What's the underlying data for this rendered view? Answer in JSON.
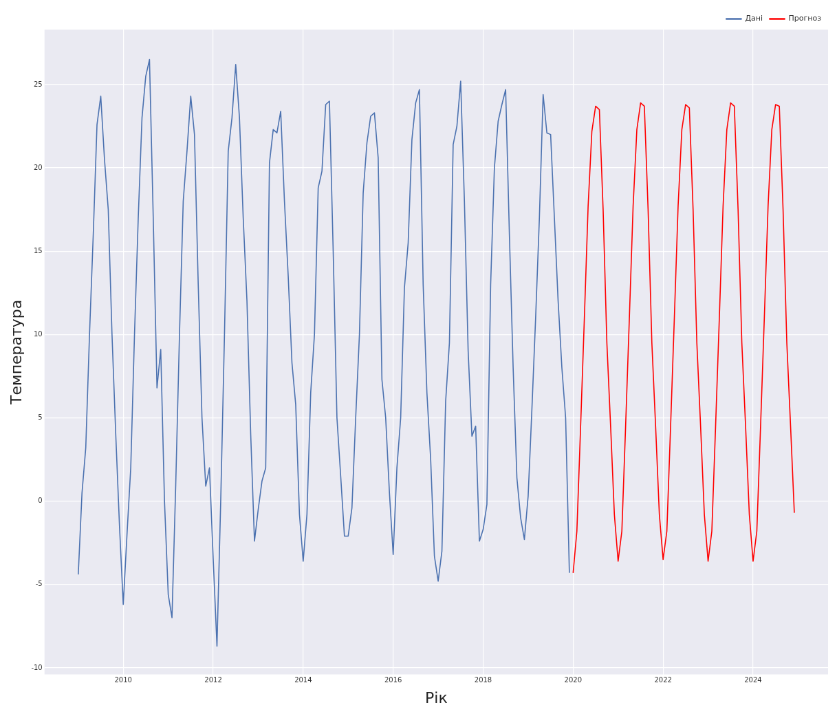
{
  "chart_data": {
    "type": "line",
    "xlabel": "Рік",
    "ylabel": "Температура",
    "xlim": [
      "2008-04",
      "2025-09"
    ],
    "ylim": [
      -10.4,
      28.3
    ],
    "xticks": [
      "2010",
      "2012",
      "2014",
      "2016",
      "2018",
      "2020",
      "2022",
      "2024"
    ],
    "yticks": [
      -10,
      -5,
      0,
      5,
      10,
      15,
      20,
      25
    ],
    "grid": true,
    "legend": "top right",
    "marker": "none",
    "line_style": "solid",
    "series": [
      {
        "name": "Дані",
        "color": "#4c72b0",
        "x": [
          "2009-01",
          "2009-02",
          "2009-03",
          "2009-04",
          "2009-05",
          "2009-06",
          "2009-07",
          "2009-08",
          "2009-09",
          "2009-10",
          "2009-11",
          "2009-12",
          "2010-01",
          "2010-02",
          "2010-03",
          "2010-04",
          "2010-05",
          "2010-06",
          "2010-07",
          "2010-08",
          "2010-09",
          "2010-10",
          "2010-11",
          "2010-12",
          "2011-01",
          "2011-02",
          "2011-03",
          "2011-04",
          "2011-05",
          "2011-06",
          "2011-07",
          "2011-08",
          "2011-09",
          "2011-10",
          "2011-11",
          "2011-12",
          "2012-01",
          "2012-02",
          "2012-03",
          "2012-04",
          "2012-05",
          "2012-06",
          "2012-07",
          "2012-08",
          "2012-09",
          "2012-10",
          "2012-11",
          "2012-12",
          "2013-01",
          "2013-02",
          "2013-03",
          "2013-04",
          "2013-05",
          "2013-06",
          "2013-07",
          "2013-08",
          "2013-09",
          "2013-10",
          "2013-11",
          "2013-12",
          "2014-01",
          "2014-02",
          "2014-03",
          "2014-04",
          "2014-05",
          "2014-06",
          "2014-07",
          "2014-08",
          "2014-09",
          "2014-10",
          "2014-11",
          "2014-12",
          "2015-01",
          "2015-02",
          "2015-03",
          "2015-04",
          "2015-05",
          "2015-06",
          "2015-07",
          "2015-08",
          "2015-09",
          "2015-10",
          "2015-11",
          "2015-12",
          "2016-01",
          "2016-02",
          "2016-03",
          "2016-04",
          "2016-05",
          "2016-06",
          "2016-07",
          "2016-08",
          "2016-09",
          "2016-10",
          "2016-11",
          "2016-12",
          "2017-01",
          "2017-02",
          "2017-03",
          "2017-04",
          "2017-05",
          "2017-06",
          "2017-07",
          "2017-08",
          "2017-09",
          "2017-10",
          "2017-11",
          "2017-12",
          "2018-01",
          "2018-02",
          "2018-03",
          "2018-04",
          "2018-05",
          "2018-06",
          "2018-07",
          "2018-08",
          "2018-09",
          "2018-10",
          "2018-11",
          "2018-12",
          "2019-01",
          "2019-02",
          "2019-03",
          "2019-04",
          "2019-05",
          "2019-06",
          "2019-07",
          "2019-08",
          "2019-09",
          "2019-10",
          "2019-11",
          "2019-12"
        ],
        "values": [
          -4.4,
          0.5,
          3.2,
          10,
          16,
          22.6,
          24.3,
          20.5,
          17.5,
          10,
          4,
          -1.5,
          -6.2,
          -2,
          2,
          10,
          17,
          23,
          25.5,
          26.5,
          17,
          6.8,
          9.1,
          0,
          -5.6,
          -7,
          1,
          10,
          18,
          21,
          24.3,
          22,
          13,
          5,
          0.9,
          2,
          -3.5,
          -8.7,
          0,
          10,
          21,
          23,
          26.2,
          23,
          17,
          12,
          4,
          -2.4,
          -0.5,
          1.2,
          2,
          20.3,
          22.3,
          22.1,
          23.4,
          18,
          13.5,
          8.3,
          5.8,
          -0.8,
          -3.6,
          -0.8,
          6.5,
          10,
          18.8,
          19.8,
          23.8,
          24,
          15,
          5,
          1.5,
          -2.1,
          -2.1,
          -0.4,
          5,
          10,
          18.5,
          21.5,
          23.1,
          23.3,
          20.6,
          7.3,
          5,
          0.5,
          -3.2,
          2,
          5,
          12.8,
          15.5,
          21.7,
          23.9,
          24.7,
          13,
          6.5,
          2.5,
          -3.3,
          -4.8,
          -3,
          6,
          9.5,
          21.4,
          22.5,
          25.2,
          18,
          9,
          3.9,
          4.5,
          -2.4,
          -1.7,
          -0.2,
          13,
          20,
          22.8,
          23.8,
          24.7,
          16,
          8,
          1.4,
          -1,
          -2.3,
          0.3,
          5.5,
          11,
          17,
          24.4,
          22.1,
          22,
          17,
          12,
          8,
          5,
          -4.3
        ]
      },
      {
        "name": "Прогноз",
        "color": "#ff0000",
        "x": [
          "2020-01",
          "2020-02",
          "2020-03",
          "2020-04",
          "2020-05",
          "2020-06",
          "2020-07",
          "2020-08",
          "2020-09",
          "2020-10",
          "2020-11",
          "2020-12",
          "2021-01",
          "2021-02",
          "2021-03",
          "2021-04",
          "2021-05",
          "2021-06",
          "2021-07",
          "2021-08",
          "2021-09",
          "2021-10",
          "2021-11",
          "2021-12",
          "2022-01",
          "2022-02",
          "2022-03",
          "2022-04",
          "2022-05",
          "2022-06",
          "2022-07",
          "2022-08",
          "2022-09",
          "2022-10",
          "2022-11",
          "2022-12",
          "2023-01",
          "2023-02",
          "2023-03",
          "2023-04",
          "2023-05",
          "2023-06",
          "2023-07",
          "2023-08",
          "2023-09",
          "2023-10",
          "2023-11",
          "2023-12",
          "2024-01",
          "2024-02",
          "2024-03",
          "2024-04",
          "2024-05",
          "2024-06",
          "2024-07",
          "2024-08",
          "2024-09",
          "2024-10",
          "2024-11",
          "2024-12"
        ],
        "values": [
          -4.3,
          -1.8,
          4.5,
          11,
          17.7,
          22.2,
          23.7,
          23.5,
          17.5,
          9.5,
          4.5,
          -0.8,
          -3.6,
          -1.8,
          4.5,
          11,
          17.7,
          22.3,
          23.9,
          23.7,
          17.5,
          9.5,
          4.5,
          -0.8,
          -3.5,
          -1.8,
          4.5,
          11,
          17.7,
          22.3,
          23.8,
          23.6,
          17.5,
          9.5,
          4.5,
          -0.8,
          -3.6,
          -1.8,
          4.5,
          11,
          17.7,
          22.3,
          23.9,
          23.7,
          17.5,
          9.5,
          4.5,
          -0.8,
          -3.6,
          -1.8,
          4.5,
          11,
          17.7,
          22.3,
          23.8,
          23.7,
          17.5,
          9.5,
          4.5,
          -0.7
        ]
      }
    ]
  }
}
